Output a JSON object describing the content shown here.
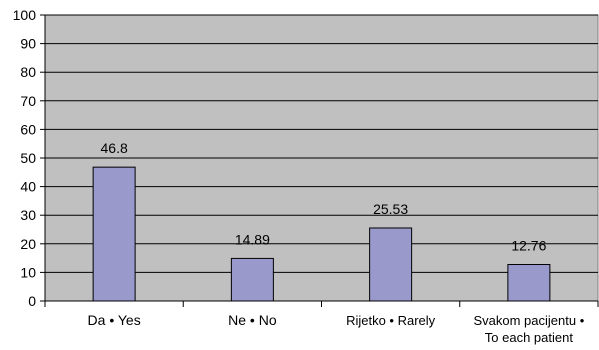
{
  "chart_data": {
    "type": "bar",
    "categories": [
      [
        "Da • Yes"
      ],
      [
        "Ne • No"
      ],
      [
        "Rijetko • Rarely"
      ],
      [
        "Svakom pacijentu •",
        "To each patient"
      ]
    ],
    "values": [
      46.8,
      14.89,
      25.53,
      12.76
    ],
    "data_labels": [
      "46.8",
      "14.89",
      "25.53",
      "12.76"
    ],
    "ylim": [
      0,
      100
    ],
    "yticks": [
      0,
      10,
      20,
      30,
      40,
      50,
      60,
      70,
      80,
      90,
      100
    ],
    "grid": true,
    "legend": "none",
    "colors": {
      "plot_background": "#c0c0c0",
      "bar_fill": "#9999cc",
      "bar_stroke": "#000000",
      "gridline": "#000000"
    }
  }
}
